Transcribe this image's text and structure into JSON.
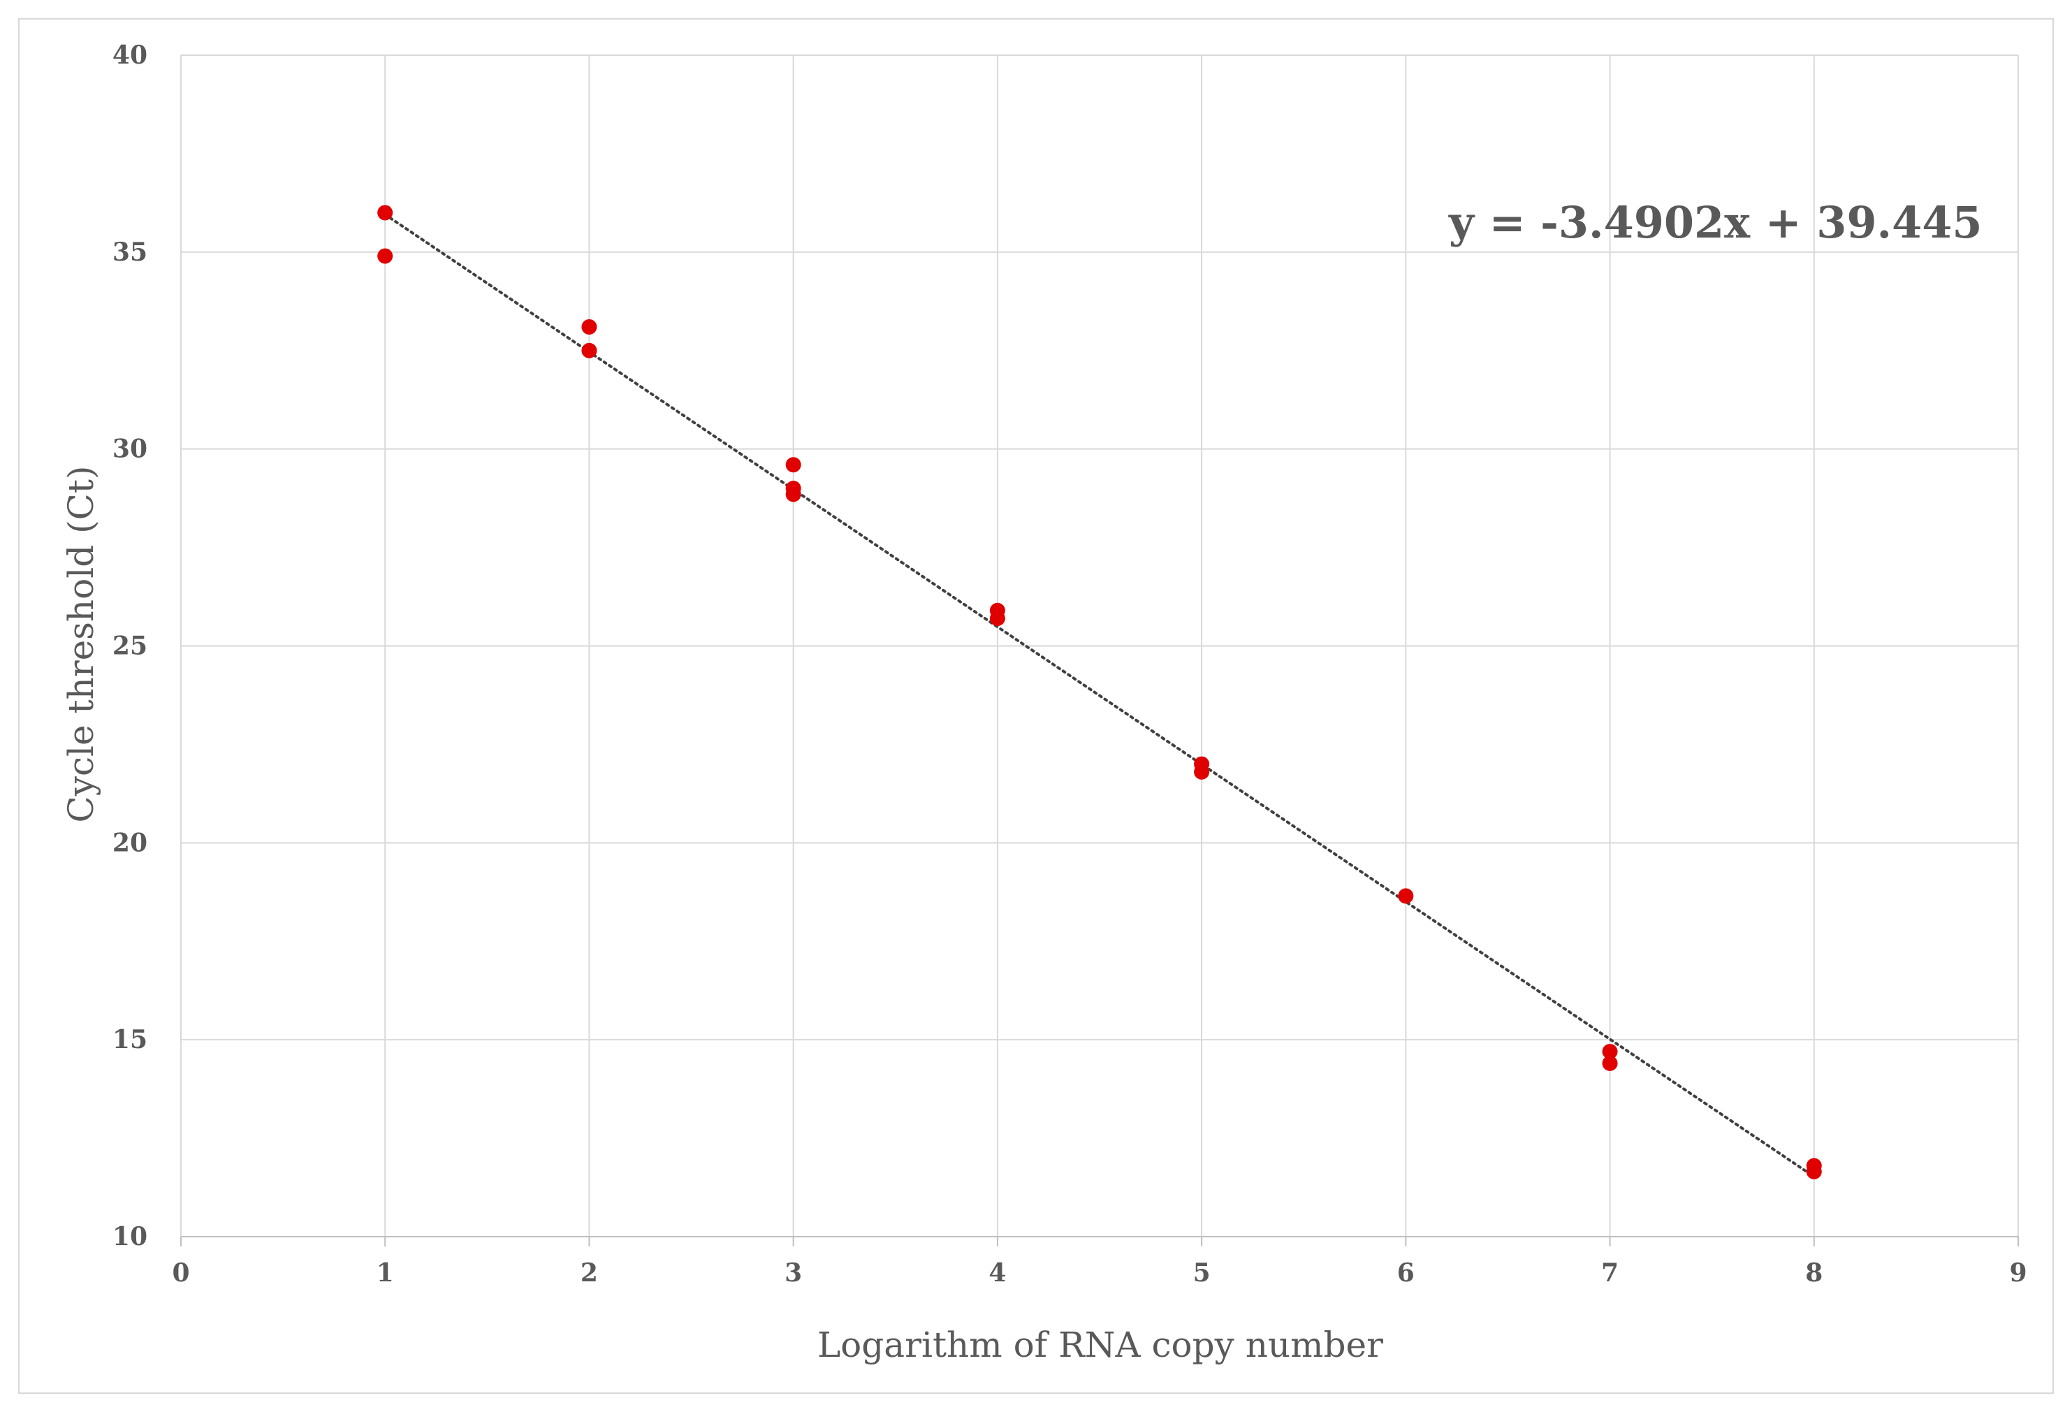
{
  "chart_data": {
    "type": "scatter",
    "title": "",
    "xlabel": "Logarithm of RNA copy number",
    "ylabel": "Cycle threshold (Ct)",
    "xlim": [
      0,
      9
    ],
    "ylim": [
      10,
      40
    ],
    "x_ticks": [
      0,
      1,
      2,
      3,
      4,
      5,
      6,
      7,
      8,
      9
    ],
    "y_ticks": [
      10,
      15,
      20,
      25,
      30,
      35,
      40
    ],
    "grid": true,
    "legend": "none",
    "series": [
      {
        "color": "#e00000",
        "x": [
          1,
          1,
          2,
          2,
          3,
          3,
          3,
          4,
          4,
          5,
          5,
          6,
          7,
          7,
          8,
          8
        ],
        "y": [
          36.0,
          34.9,
          33.1,
          32.5,
          29.6,
          29.0,
          28.85,
          25.9,
          25.7,
          22.0,
          21.8,
          18.65,
          14.7,
          14.4,
          11.8,
          11.65
        ]
      }
    ],
    "trendline": {
      "type": "linear",
      "slope": -3.4902,
      "intercept": 39.445,
      "x_range": [
        1,
        8
      ],
      "style": "dotted",
      "color": "#404040"
    },
    "equation_label": "y = -3.4902x + 39.445"
  }
}
